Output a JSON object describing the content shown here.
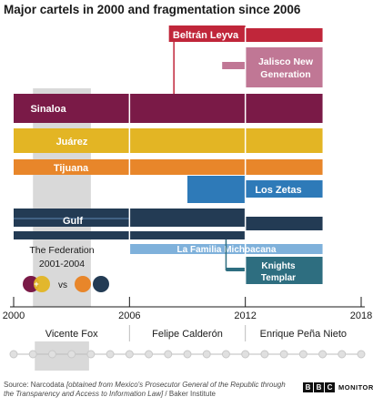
{
  "title": "Major cartels in 2000 and fragmentation since 2006",
  "source": {
    "prefix": "Source: Narcodata ",
    "detail": "[obtained from Mexico's Prosecutor General of the Republic through the Transparency and Access to Information Law]",
    "suffix": " / Baker Institute"
  },
  "branding": {
    "letters": [
      "B",
      "B",
      "C"
    ],
    "text": "MONITORING"
  },
  "colors": {
    "sinaloa": "#7a1a47",
    "juarez": "#e3b524",
    "tijuana": "#e8862a",
    "gulf": "#233b54",
    "zetas": "#2e7ab8",
    "familia": "#7fb1db",
    "templar": "#2e6e80",
    "jalisco": "#c07795",
    "beltran": "#c0263a",
    "federation_shade": "#d9d9d9",
    "divider": "#bdbdbd",
    "axis": "#1a1a1a"
  },
  "chart_data": {
    "type": "timeline",
    "x_range": [
      2000,
      2018
    ],
    "x_ticks": [
      {
        "value": 2000,
        "label": "2000"
      },
      {
        "value": 2006,
        "label": "2006"
      },
      {
        "value": 2012,
        "label": "2012"
      },
      {
        "value": 2018,
        "label": "2018"
      }
    ],
    "presidents": [
      {
        "name": "Vicente Fox",
        "start": 2000,
        "end": 2006
      },
      {
        "name": "Felipe Calderón",
        "start": 2006,
        "end": 2012
      },
      {
        "name": "Enrique Peña Nieto",
        "start": 2012,
        "end": 2018
      }
    ],
    "federation": {
      "label_line1": "The Federation",
      "label_line2": "2001-2004",
      "start": 2001,
      "end": 2004,
      "vs": "vs"
    },
    "cartels": [
      {
        "name": "Sinaloa",
        "color_key": "sinaloa"
      },
      {
        "name": "Juárez",
        "color_key": "juarez"
      },
      {
        "name": "Tijuana",
        "color_key": "tijuana"
      },
      {
        "name": "Gulf",
        "color_key": "gulf"
      },
      {
        "name": "Beltrán Leyva",
        "color_key": "beltran"
      },
      {
        "name": "Jalisco New Generation",
        "color_key": "jalisco"
      },
      {
        "name": "Los Zetas",
        "color_key": "zetas"
      },
      {
        "name": "La Familia Michoacana",
        "color_key": "familia"
      },
      {
        "name": "Knights Templar",
        "color_key": "templar"
      }
    ]
  }
}
